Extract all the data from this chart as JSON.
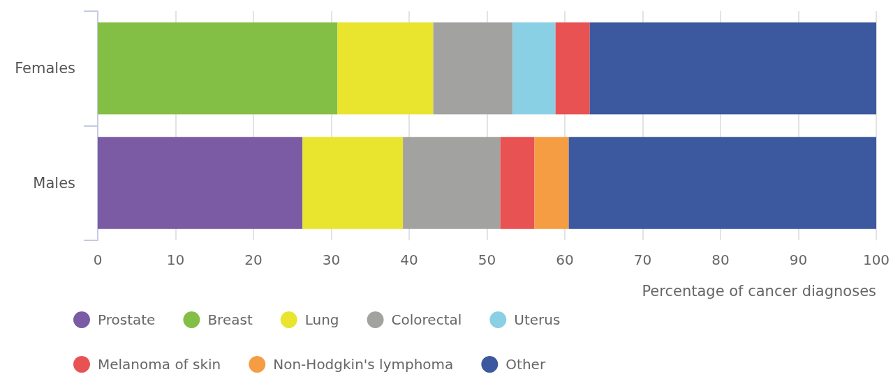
{
  "chart_data": {
    "type": "bar",
    "orientation": "horizontal",
    "stacked": true,
    "categories": [
      "Females",
      "Males"
    ],
    "series": [
      {
        "name": "Prostate",
        "color": "#7a5ba4",
        "values": [
          null,
          26.3
        ]
      },
      {
        "name": "Breast",
        "color": "#84bf45",
        "values": [
          30.8,
          null
        ]
      },
      {
        "name": "Lung",
        "color": "#e9e42e",
        "values": [
          12.3,
          12.9
        ]
      },
      {
        "name": "Colorectal",
        "color": "#a2a2a0",
        "values": [
          10.2,
          12.5
        ]
      },
      {
        "name": "Uterus",
        "color": "#8ad0e4",
        "values": [
          5.5,
          null
        ]
      },
      {
        "name": "Melanoma of skin",
        "color": "#e85253",
        "values": [
          4.4,
          4.4
        ]
      },
      {
        "name": "Non-Hodgkin's lymphoma",
        "color": "#f59d42",
        "values": [
          null,
          4.4
        ]
      },
      {
        "name": "Other",
        "color": "#3c589f",
        "values": [
          36.8,
          39.5
        ]
      }
    ],
    "xlabel": "Percentage of cancer diagnoses",
    "xlim": [
      0,
      100
    ],
    "xticks": [
      0,
      10,
      20,
      30,
      40,
      50,
      60,
      70,
      80,
      90,
      100
    ],
    "grid": "x",
    "legend": "bottom"
  }
}
